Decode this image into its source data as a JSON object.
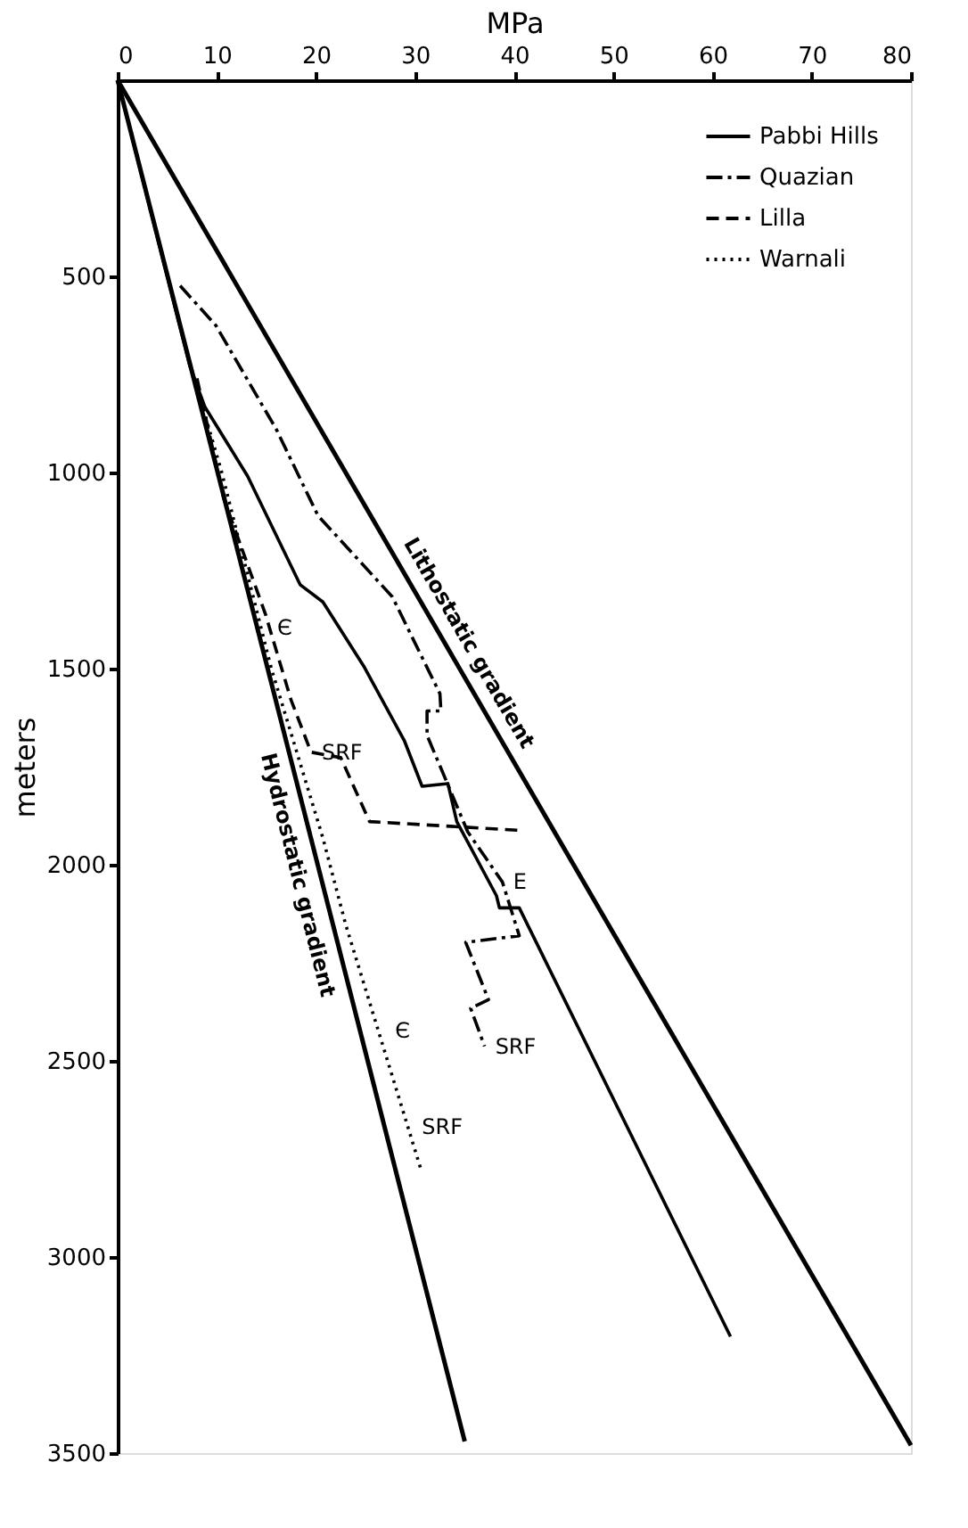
{
  "chart_data": {
    "type": "line",
    "xlabel": "MPa",
    "ylabel": "meters",
    "xlim": [
      0,
      80
    ],
    "xticks": [
      0,
      10,
      20,
      30,
      40,
      50,
      60,
      70,
      80
    ],
    "ylim": [
      3500,
      0
    ],
    "yticks": [
      500,
      1000,
      1500,
      2000,
      2500,
      3000,
      3500
    ],
    "grid": false,
    "legend": "top right",
    "marker": "none",
    "series": [
      {
        "name": "Pabbi Hills",
        "color": "#000000",
        "line_style": "solid",
        "x": [
          0,
          7.3,
          8.8,
          13.1,
          18.4,
          20.7,
          24.8,
          28.9,
          30.7,
          33.3,
          34.2,
          38.2,
          38.5,
          40.5,
          61.8
        ],
        "values": [
          0,
          730,
          833,
          1009,
          1286,
          1330,
          1493,
          1683,
          1800,
          1793,
          1890,
          2079,
          2110,
          2110,
          3203
        ]
      },
      {
        "name": "Quazian",
        "color": "#000000",
        "line_style": "dashdot",
        "x": [
          6.3,
          9.9,
          16.0,
          20.2,
          27.7,
          32.5,
          32.6,
          31.2,
          31.2,
          35.3,
          38.8,
          40.5,
          35.1,
          37.4,
          35.6,
          37.0
        ],
        "values": [
          524,
          625,
          890,
          1110,
          1317,
          1564,
          1608,
          1608,
          1670,
          1916,
          2044,
          2181,
          2198,
          2344,
          2366,
          2463
        ]
      },
      {
        "name": "Lilla",
        "color": "#000000",
        "line_style": "dashed",
        "x": [
          8.0,
          10.7,
          14.9,
          17.5,
          19.5,
          22.5,
          25.4,
          40.3
        ],
        "values": [
          760,
          1066,
          1361,
          1581,
          1713,
          1727,
          1890,
          1912
        ]
      },
      {
        "name": "Warnali",
        "color": "#000000",
        "line_style": "dotted",
        "x": [
          7.5,
          10.5,
          15.5,
          20.7,
          23.0,
          30.6
        ],
        "values": [
          740,
          1000,
          1500,
          1932,
          2153,
          2778
        ]
      },
      {
        "color": "#000000",
        "line_style": "solid",
        "x": [
          0,
          80
        ],
        "values": [
          0,
          3480
        ]
      },
      {
        "color": "#000000",
        "line_style": "solid",
        "x": [
          0,
          35
        ],
        "values": [
          0,
          3470
        ]
      }
    ],
    "annotations": [
      "Lithostatic gradient",
      "Hydrostatic gradient",
      {
        "text": "Є",
        "x": 15.0,
        "y": 1396
      },
      {
        "text": "SRF",
        "x": 19.5,
        "y": 1713
      },
      {
        "text": "E",
        "x": 38.8,
        "y": 2044
      },
      {
        "text": "SRF",
        "x": 37.0,
        "y": 2463
      },
      {
        "text": "Є",
        "x": 26.9,
        "y": 2423
      },
      {
        "text": "SRF",
        "x": 29.6,
        "y": 2668
      }
    ]
  }
}
